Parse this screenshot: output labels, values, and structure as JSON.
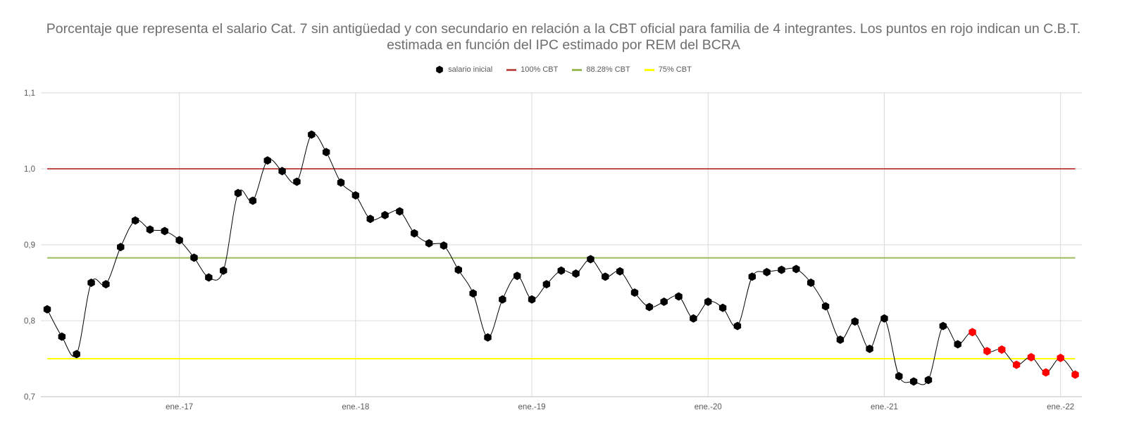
{
  "chart_data": {
    "type": "line",
    "title": "Porcentaje que representa el salario Cat. 7 sin antigüedad y con secundario en relación a la CBT oficial para familia de 4 integrantes. Los puntos en rojo indican un C.B.T. estimada en función del IPC estimado por REM del BCRA",
    "xlabel": "",
    "ylabel": "",
    "ylim": [
      0.7,
      1.1
    ],
    "y_ticks": [
      "0,7",
      "0,8",
      "0,9",
      "1,0",
      "1,1"
    ],
    "x_ticks": [
      "ene.-17",
      "ene.-18",
      "ene.-19",
      "ene.-20",
      "ene.-21",
      "ene.-22"
    ],
    "grid": true,
    "legend_position": "top",
    "series": [
      {
        "name": "salario inicial",
        "color": "#000000",
        "estimated_color": "#ff0000",
        "x": [
          "abr.-16",
          "may.-16",
          "jun.-16",
          "jul.-16",
          "ago.-16",
          "sep.-16",
          "oct.-16",
          "nov.-16",
          "dic.-16",
          "ene.-17",
          "feb.-17",
          "mar.-17",
          "abr.-17",
          "may.-17",
          "jun.-17",
          "jul.-17",
          "ago.-17",
          "sep.-17",
          "oct.-17",
          "nov.-17",
          "dic.-17",
          "ene.-18",
          "feb.-18",
          "mar.-18",
          "abr.-18",
          "may.-18",
          "jun.-18",
          "jul.-18",
          "ago.-18",
          "sep.-18",
          "oct.-18",
          "nov.-18",
          "dic.-18",
          "ene.-19",
          "feb.-19",
          "mar.-19",
          "abr.-19",
          "may.-19",
          "jun.-19",
          "jul.-19",
          "ago.-19",
          "sep.-19",
          "oct.-19",
          "nov.-19",
          "dic.-19",
          "ene.-20",
          "feb.-20",
          "mar.-20",
          "abr.-20",
          "may.-20",
          "jun.-20",
          "jul.-20",
          "ago.-20",
          "sep.-20",
          "oct.-20",
          "nov.-20",
          "dic.-20",
          "ene.-21",
          "feb.-21",
          "mar.-21",
          "abr.-21",
          "may.-21",
          "jun.-21",
          "jul.-21",
          "ago.-21",
          "sep.-21",
          "oct.-21",
          "nov.-21",
          "dic.-21",
          "ene.-22",
          "feb.-22"
        ],
        "values": [
          0.815,
          0.779,
          0.756,
          0.85,
          0.848,
          0.897,
          0.932,
          0.92,
          0.918,
          0.906,
          0.883,
          0.857,
          0.866,
          0.968,
          0.958,
          1.011,
          0.997,
          0.983,
          1.045,
          1.022,
          0.982,
          0.965,
          0.934,
          0.939,
          0.944,
          0.915,
          0.902,
          0.899,
          0.867,
          0.836,
          0.778,
          0.828,
          0.859,
          0.828,
          0.848,
          0.866,
          0.862,
          0.881,
          0.858,
          0.865,
          0.837,
          0.818,
          0.825,
          0.832,
          0.803,
          0.825,
          0.817,
          0.793,
          0.858,
          0.864,
          0.867,
          0.868,
          0.85,
          0.819,
          0.775,
          0.799,
          0.763,
          0.803,
          0.727,
          0.72,
          0.722,
          0.793,
          0.769,
          0.785,
          0.76,
          0.762,
          0.742,
          0.752,
          0.732,
          0.751,
          0.729
        ],
        "estimated_from_index": 63
      },
      {
        "name": "100% CBT",
        "color": "#c0504d",
        "value": 1.0
      },
      {
        "name": "88.28% CBT",
        "color": "#9bbb59",
        "value": 0.8828
      },
      {
        "name": "75% CBT",
        "color": "#ffff00",
        "value": 0.75
      }
    ]
  }
}
